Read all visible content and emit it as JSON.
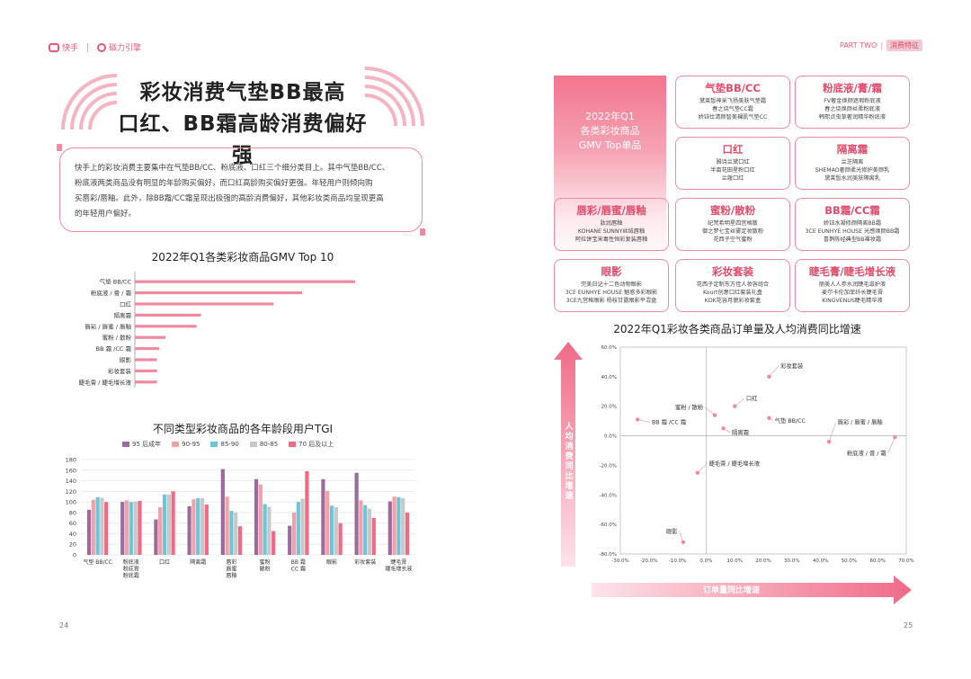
{
  "header": {
    "logo1": "快手",
    "logo2": "磁力引擎",
    "part": "PART TWO",
    "section": "消费特征"
  },
  "left": {
    "title_line1": "彩妆消费气垫BB最高",
    "title_line2": "口红、BB霜高龄消费偏好强",
    "intro_lines": [
      "快手上的彩妆消费主要集中在气垫BB/CC、粉底液、口红三个细分类目上。其中气垫BB/CC、",
      "粉底液两类商品没有明显的年龄购买偏好，而口红高龄购买偏好更强。年轻用户则倾向购",
      "买唇彩/唇釉。此外，除BB霜/CC霜呈现出极强的高龄消费偏好，其他彩妆类商品均呈现更高",
      "的年轻用户偏好。"
    ],
    "page_number": "24"
  },
  "right": {
    "gmv_box_lines": [
      "2022年Q1",
      "各类彩妆商品",
      "GMV Top单品"
    ],
    "cards": [
      {
        "title": "气垫BB/CC",
        "lines": [
          "黛莱皙神采飞扬美肤气垫霜",
          "春之烧气垫CC霜",
          "娇钰仕清颜智美裸肌气垫CC"
        ]
      },
      {
        "title": "粉底液/膏/霜",
        "lines": [
          "FV奢金焕颜遮瑕粉底液",
          "春之烧焕颜丝柔粉底液",
          "韩熙贞虫草奢润精华粉底液"
        ]
      },
      {
        "title": "口红",
        "lines": [
          "雅诗兰黛口红",
          "半亩花田星粉口红",
          "兰蔻口红"
        ]
      },
      {
        "title": "隔离霜",
        "lines": [
          "兰芝隔离",
          "SHEMAO奢颜柔光修护美颜乳",
          "黛莱皙水润美肤隔离乳"
        ]
      },
      {
        "title": "唇彩/唇蜜/唇釉",
        "lines": [
          "肽润唇釉",
          "KOHANE SUNNY丝绒唇釉",
          "阿拉饼宝宋毒性恒彩复装唇釉"
        ]
      },
      {
        "title": "蜜粉/散粉",
        "lines": [
          "纪梵希明星四宫格散",
          "御之梦七宝丝雾定妆散粉",
          "花西子空气蜜粉"
        ]
      },
      {
        "title": "BB霜/CC霜",
        "lines": [
          "娇钰水凝修颜隔离BB霜",
          "3CE EUNHYE HOUSE 光感焕颜BB霜",
          "喜鹊陈经典型BB裸妆霜"
        ]
      },
      {
        "title": "眼影",
        "lines": [
          "完美日记十二色动物眼影",
          "3CE EUNHYE HOUSE 魅惑多彩眼影",
          "3CE九宫格眼影 杨枝甘露眼影平混盘"
        ]
      },
      {
        "title": "彩妆套装",
        "lines": [
          "花西子定制东方佳人妆容组合",
          "Kourt创意口红套装礼盒",
          "KDK花容月貌彩妆套盒"
        ]
      },
      {
        "title": "睫毛膏/睫毛增长液",
        "lines": [
          "丽美人人参水润睫毛滋护液",
          "麦尔卡伦加菲纤长睫毛膏",
          "KINGVENUS睫毛精华液"
        ]
      }
    ],
    "scatter_title": "2022年Q1彩妆各类商品订单量及人均消费同比增速",
    "y_axis_label": "人均消费同比增速",
    "x_axis_label": "订单量同比增速",
    "page_number": "25"
  },
  "chart_data": [
    {
      "type": "bar",
      "orientation": "horizontal",
      "title": "2022年Q1各类彩妆商品GMV Top 10",
      "categories": [
        "气垫 BB/CC",
        "粉底液 / 膏 / 霜",
        "口红",
        "隔离霜",
        "唇彩 / 唇蜜 / 唇釉",
        "蜜粉 / 散粉",
        "BB 霜 /CC 霜",
        "眼影",
        "彩妆套装",
        "睫毛膏 / 睫毛增长液"
      ],
      "values": [
        100,
        76,
        63,
        30,
        28,
        14,
        11,
        10,
        10,
        10
      ],
      "color": "#f08aa0"
    },
    {
      "type": "bar",
      "title": "不同类型彩妆商品的各年龄段用户TGI",
      "categories": [
        [
          "气垫 BB/CC"
        ],
        [
          "粉底液",
          "粉底膏",
          "粉底霜"
        ],
        [
          "口红"
        ],
        [
          "隔离霜"
        ],
        [
          "唇彩",
          "唇蜜",
          "唇釉"
        ],
        [
          "蜜粉",
          "散粉"
        ],
        [
          "BB 霜",
          "CC 霜"
        ],
        [
          "眼影"
        ],
        [
          "彩妆套装"
        ],
        [
          "睫毛膏",
          "睫毛增长液"
        ]
      ],
      "series": [
        {
          "name": "95 后成年",
          "color": "#9b6b9e",
          "values": [
            85,
            100,
            67,
            92,
            162,
            143,
            55,
            143,
            155,
            101
          ]
        },
        {
          "name": "90-95",
          "color": "#f4a0a8",
          "values": [
            104,
            103,
            90,
            105,
            110,
            133,
            80,
            121,
            103,
            110
          ]
        },
        {
          "name": "85-90",
          "color": "#6cc5d9",
          "values": [
            109,
            100,
            114,
            107,
            83,
            96,
            100,
            93,
            94,
            109
          ]
        },
        {
          "name": "80-85",
          "color": "#c8c8c8",
          "values": [
            108,
            101,
            114,
            107,
            80,
            91,
            106,
            90,
            87,
            107
          ]
        },
        {
          "name": "70 后及以上",
          "color": "#f06a86",
          "values": [
            100,
            102,
            120,
            95,
            54,
            45,
            158,
            60,
            70,
            80
          ]
        }
      ],
      "ylim": [
        0,
        180
      ],
      "yticks": [
        0,
        20,
        40,
        60,
        80,
        100,
        120,
        140,
        160,
        180
      ]
    },
    {
      "type": "scatter",
      "title": "2022年Q1彩妆各类商品订单量及人均消费同比增速",
      "xlabel": "订单量同比增速",
      "ylabel": "人均消费同比增速",
      "xlim": [
        -30,
        70
      ],
      "ylim": [
        -80,
        60
      ],
      "xticks": [
        "-30.0%",
        "-20.0%",
        "-10.0%",
        "0.0%",
        "10.0%",
        "20.0%",
        "30.0%",
        "40.0%",
        "50.0%",
        "60.0%",
        "70.0%"
      ],
      "yticks": [
        "60.0%",
        "40.0%",
        "20.0%",
        "0.0%",
        "-20.0%",
        "-40.0%",
        "-60.0%",
        "-80.0%"
      ],
      "points": [
        {
          "label": "彩妆套装",
          "x": 22,
          "y": 40,
          "lx": 26,
          "ly": 46,
          "anchor": "start"
        },
        {
          "label": "口红",
          "x": 10,
          "y": 20,
          "lx": 14,
          "ly": 24,
          "anchor": "start"
        },
        {
          "label": "蜜粉 / 散粉",
          "x": 3,
          "y": 14,
          "lx": -1,
          "ly": 18,
          "anchor": "end"
        },
        {
          "label": "BB 霜 /CC 霜",
          "x": -24,
          "y": 11,
          "lx": -19,
          "ly": 8,
          "anchor": "start"
        },
        {
          "label": "气垫 BB/CC",
          "x": 22,
          "y": 12,
          "lx": 24,
          "ly": 9,
          "anchor": "start"
        },
        {
          "label": "隔离霜",
          "x": 6,
          "y": 5,
          "lx": 9,
          "ly": 1,
          "anchor": "start"
        },
        {
          "label": "唇彩 / 唇蜜 / 唇釉",
          "x": 43,
          "y": -4,
          "lx": 46,
          "ly": 8,
          "anchor": "start"
        },
        {
          "label": "粉底液 / 膏 / 霜",
          "x": 66,
          "y": -1,
          "lx": 63,
          "ly": -13,
          "anchor": "end"
        },
        {
          "label": "睫毛膏 / 睫毛增长液",
          "x": -3,
          "y": -25,
          "lx": 1,
          "ly": -20,
          "anchor": "start"
        },
        {
          "label": "眼影",
          "x": -8,
          "y": -72,
          "lx": -10,
          "ly": -66,
          "anchor": "end"
        }
      ]
    }
  ]
}
